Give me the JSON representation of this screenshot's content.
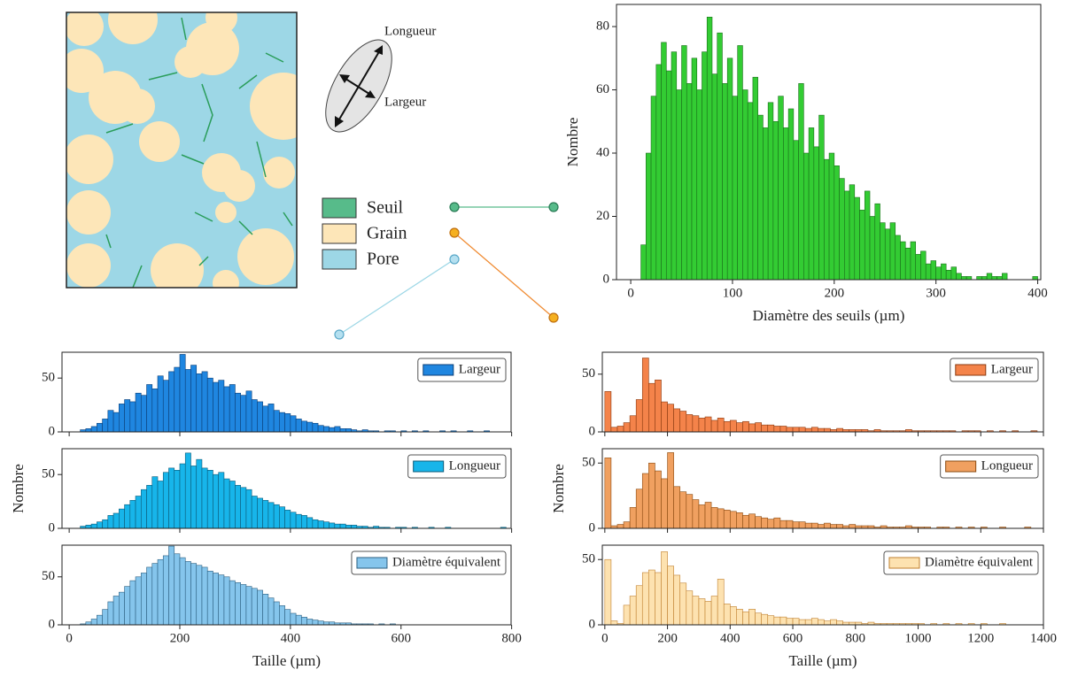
{
  "schematic": {
    "arrow_labels": [
      "Longueur",
      "Largeur"
    ],
    "legend": [
      "Seuil",
      "Grain",
      "Pore"
    ]
  },
  "chart_data": [
    {
      "type": "histogram",
      "xlabel": "Diamètre des seuils (µm)",
      "ylabel": "Nombre",
      "color": "#33cc33",
      "edgecolor": "#1a6e1a",
      "bins": [
        10,
        15,
        20,
        25,
        30,
        35,
        40,
        45,
        50,
        55,
        60,
        65,
        70,
        75,
        80,
        85,
        90,
        95,
        100,
        105,
        110,
        115,
        120,
        125,
        130,
        135,
        140,
        145,
        150,
        155,
        160,
        165,
        170,
        175,
        180,
        185,
        190,
        195,
        200,
        205,
        210,
        215,
        220,
        225,
        230,
        235,
        240,
        245,
        250,
        255,
        260,
        265,
        270,
        275,
        280,
        285,
        290,
        295,
        300,
        305,
        310,
        315,
        320,
        325,
        330,
        335,
        340,
        345,
        350,
        355,
        360,
        365,
        370,
        375,
        380,
        385,
        390,
        395,
        400
      ],
      "values": [
        11,
        40,
        58,
        68,
        75,
        66,
        72,
        60,
        74,
        62,
        70,
        60,
        72,
        83,
        65,
        78,
        62,
        70,
        58,
        74,
        60,
        56,
        64,
        52,
        48,
        56,
        50,
        58,
        48,
        54,
        44,
        62,
        40,
        48,
        42,
        52,
        38,
        40,
        36,
        32,
        28,
        30,
        26,
        22,
        28,
        20,
        24,
        18,
        16,
        18,
        14,
        12,
        10,
        12,
        8,
        9,
        5,
        6,
        4,
        5,
        3,
        4,
        2,
        1,
        1,
        0,
        1,
        1,
        2,
        1,
        1,
        2,
        0,
        0,
        0,
        0,
        0,
        1
      ],
      "xlim": [
        -14,
        403
      ],
      "ylim": [
        0,
        87
      ],
      "xticks": [
        0,
        100,
        200,
        300,
        400
      ],
      "yticks": [
        0,
        20,
        40,
        60,
        80
      ]
    },
    {
      "type": "histogram",
      "edgecolor": "#0b3f78",
      "xticklabels": false,
      "bins": [
        20,
        30,
        40,
        50,
        60,
        70,
        80,
        90,
        100,
        110,
        120,
        130,
        140,
        150,
        160,
        170,
        180,
        190,
        200,
        210,
        220,
        230,
        240,
        250,
        260,
        270,
        280,
        290,
        300,
        310,
        320,
        330,
        340,
        350,
        360,
        370,
        380,
        390,
        400,
        410,
        420,
        430,
        440,
        450,
        460,
        470,
        480,
        490,
        500,
        510,
        520,
        530,
        540,
        550,
        560,
        570,
        580,
        590,
        600,
        610,
        620,
        630,
        640,
        650,
        660,
        670,
        680,
        690,
        700,
        710,
        720,
        730,
        740,
        750,
        760,
        770,
        780,
        790,
        800
      ],
      "series": [
        {
          "name": "Largeur",
          "color": "#1f86e0",
          "values": [
            2,
            3,
            5,
            8,
            12,
            20,
            18,
            26,
            30,
            28,
            36,
            34,
            44,
            40,
            52,
            48,
            56,
            60,
            72,
            58,
            62,
            54,
            56,
            50,
            46,
            48,
            42,
            44,
            36,
            34,
            38,
            30,
            28,
            24,
            26,
            20,
            18,
            17,
            15,
            12,
            10,
            9,
            8,
            6,
            5,
            4,
            5,
            3,
            3,
            2,
            1,
            2,
            1,
            1,
            0,
            1,
            1,
            0,
            1,
            0,
            1,
            0,
            1,
            0,
            0,
            1,
            0,
            1,
            0,
            0,
            1,
            0,
            0,
            1,
            0,
            0,
            0,
            0
          ]
        }
      ],
      "xlim": [
        -13,
        799
      ],
      "ylim": [
        0,
        74
      ],
      "xticks": [
        0,
        200,
        400,
        600,
        800
      ],
      "yticks": [
        0,
        50
      ]
    },
    {
      "type": "histogram",
      "ylabel": "Nombre",
      "edgecolor": "#0b5a78",
      "xticklabels": false,
      "bins": [
        20,
        30,
        40,
        50,
        60,
        70,
        80,
        90,
        100,
        110,
        120,
        130,
        140,
        150,
        160,
        170,
        180,
        190,
        200,
        210,
        220,
        230,
        240,
        250,
        260,
        270,
        280,
        290,
        300,
        310,
        320,
        330,
        340,
        350,
        360,
        370,
        380,
        390,
        400,
        410,
        420,
        430,
        440,
        450,
        460,
        470,
        480,
        490,
        500,
        510,
        520,
        530,
        540,
        550,
        560,
        570,
        580,
        590,
        600,
        610,
        620,
        630,
        640,
        650,
        660,
        670,
        680,
        690,
        700,
        710,
        720,
        730,
        740,
        750,
        760,
        770,
        780,
        790,
        800
      ],
      "series": [
        {
          "name": "Longueur",
          "color": "#17b5ea",
          "values": [
            2,
            3,
            4,
            6,
            8,
            12,
            14,
            18,
            22,
            26,
            30,
            36,
            40,
            48,
            44,
            52,
            56,
            54,
            60,
            70,
            58,
            64,
            56,
            54,
            50,
            52,
            46,
            44,
            40,
            38,
            36,
            30,
            28,
            26,
            24,
            22,
            20,
            17,
            15,
            13,
            12,
            10,
            8,
            7,
            6,
            5,
            4,
            4,
            3,
            3,
            2,
            2,
            1,
            2,
            1,
            1,
            0,
            1,
            1,
            0,
            1,
            0,
            0,
            1,
            0,
            0,
            1,
            0,
            0,
            0,
            0,
            0,
            0,
            0,
            0,
            0,
            1,
            0
          ]
        }
      ],
      "xlim": [
        -13,
        799
      ],
      "ylim": [
        0,
        74
      ],
      "xticks": [
        0,
        200,
        400,
        600,
        800
      ],
      "yticks": [
        0,
        50
      ]
    },
    {
      "type": "histogram",
      "xlabel": "Taille (µm)",
      "edgecolor": "#2c5f80",
      "bins": [
        20,
        30,
        40,
        50,
        60,
        70,
        80,
        90,
        100,
        110,
        120,
        130,
        140,
        150,
        160,
        170,
        180,
        190,
        200,
        210,
        220,
        230,
        240,
        250,
        260,
        270,
        280,
        290,
        300,
        310,
        320,
        330,
        340,
        350,
        360,
        370,
        380,
        390,
        400,
        410,
        420,
        430,
        440,
        450,
        460,
        470,
        480,
        490,
        500,
        510,
        520,
        530,
        540,
        550,
        560,
        570,
        580,
        590,
        600,
        610,
        620,
        630,
        640,
        650,
        660,
        670,
        680,
        690,
        700,
        710,
        720,
        730,
        740,
        750,
        760,
        770,
        780,
        790,
        800
      ],
      "series": [
        {
          "name": "Diamètre équivalent",
          "color": "#85c5ec",
          "values": [
            1,
            3,
            6,
            10,
            16,
            24,
            30,
            34,
            40,
            46,
            50,
            54,
            60,
            64,
            68,
            72,
            82,
            74,
            70,
            66,
            64,
            62,
            60,
            56,
            54,
            52,
            50,
            46,
            44,
            42,
            40,
            38,
            36,
            32,
            28,
            24,
            20,
            16,
            12,
            10,
            8,
            6,
            5,
            4,
            3,
            3,
            2,
            2,
            2,
            1,
            1,
            1,
            1,
            0,
            1,
            0,
            1,
            0,
            0,
            0,
            0,
            0,
            0,
            0,
            0,
            0,
            0,
            0,
            0,
            0,
            0,
            0,
            0,
            0,
            0,
            0,
            0,
            0
          ]
        }
      ],
      "xlim": [
        -13,
        799
      ],
      "ylim": [
        0,
        83
      ],
      "xticks": [
        0,
        200,
        400,
        600,
        800
      ],
      "yticks": [
        0,
        50
      ]
    },
    {
      "type": "histogram",
      "edgecolor": "#8a3a10",
      "xticklabels": false,
      "bins": [
        0,
        20,
        40,
        60,
        80,
        100,
        120,
        140,
        160,
        180,
        200,
        220,
        240,
        260,
        280,
        300,
        320,
        340,
        360,
        380,
        400,
        420,
        440,
        460,
        480,
        500,
        520,
        540,
        560,
        580,
        600,
        620,
        640,
        660,
        680,
        700,
        720,
        740,
        760,
        780,
        800,
        820,
        840,
        860,
        880,
        900,
        920,
        940,
        960,
        980,
        1000,
        1020,
        1040,
        1060,
        1080,
        1100,
        1120,
        1140,
        1160,
        1180,
        1200,
        1220,
        1240,
        1260,
        1280,
        1300,
        1320,
        1340,
        1360,
        1380,
        1400
      ],
      "series": [
        {
          "name": "Largeur",
          "color": "#f4834a",
          "values": [
            35,
            4,
            5,
            8,
            14,
            28,
            64,
            42,
            45,
            26,
            24,
            20,
            18,
            15,
            14,
            12,
            13,
            10,
            12,
            9,
            10,
            8,
            9,
            7,
            8,
            6,
            6,
            5,
            5,
            4,
            4,
            4,
            3,
            4,
            3,
            3,
            2,
            3,
            2,
            2,
            2,
            2,
            1,
            2,
            1,
            1,
            1,
            1,
            2,
            1,
            1,
            1,
            1,
            1,
            1,
            1,
            0,
            1,
            1,
            1,
            0,
            1,
            0,
            1,
            0,
            1,
            0,
            0,
            1,
            0
          ]
        }
      ],
      "xlim": [
        -8,
        1400
      ],
      "ylim": [
        0,
        69
      ],
      "xticks": [
        0,
        200,
        400,
        600,
        800,
        1000,
        1200,
        1400
      ],
      "yticks": [
        0,
        50
      ]
    },
    {
      "type": "histogram",
      "ylabel": "Nombre",
      "edgecolor": "#8a4a10",
      "xticklabels": false,
      "bins": [
        0,
        20,
        40,
        60,
        80,
        100,
        120,
        140,
        160,
        180,
        200,
        220,
        240,
        260,
        280,
        300,
        320,
        340,
        360,
        380,
        400,
        420,
        440,
        460,
        480,
        500,
        520,
        540,
        560,
        580,
        600,
        620,
        640,
        660,
        680,
        700,
        720,
        740,
        760,
        780,
        800,
        820,
        840,
        860,
        880,
        900,
        920,
        940,
        960,
        980,
        1000,
        1020,
        1040,
        1060,
        1080,
        1100,
        1120,
        1140,
        1160,
        1180,
        1200,
        1220,
        1240,
        1260,
        1280,
        1300,
        1320,
        1340,
        1360,
        1380,
        1400
      ],
      "series": [
        {
          "name": "Longueur",
          "color": "#f0a060",
          "values": [
            54,
            2,
            3,
            5,
            16,
            30,
            42,
            50,
            44,
            38,
            58,
            32,
            28,
            26,
            22,
            18,
            20,
            16,
            15,
            14,
            13,
            12,
            10,
            11,
            9,
            8,
            7,
            8,
            6,
            6,
            5,
            5,
            4,
            4,
            3,
            4,
            3,
            3,
            2,
            3,
            2,
            2,
            2,
            1,
            2,
            1,
            1,
            1,
            2,
            1,
            1,
            1,
            0,
            1,
            1,
            0,
            1,
            0,
            1,
            0,
            1,
            0,
            0,
            1,
            0,
            0,
            0,
            1,
            0,
            0
          ]
        }
      ],
      "xlim": [
        -8,
        1400
      ],
      "ylim": [
        0,
        61
      ],
      "xticks": [
        0,
        200,
        400,
        600,
        800,
        1000,
        1200,
        1400
      ],
      "yticks": [
        0,
        50
      ]
    },
    {
      "type": "histogram",
      "xlabel": "Taille (µm)",
      "edgecolor": "#c08030",
      "bins": [
        0,
        20,
        40,
        60,
        80,
        100,
        120,
        140,
        160,
        180,
        200,
        220,
        240,
        260,
        280,
        300,
        320,
        340,
        360,
        380,
        400,
        420,
        440,
        460,
        480,
        500,
        520,
        540,
        560,
        580,
        600,
        620,
        640,
        660,
        680,
        700,
        720,
        740,
        760,
        780,
        800,
        820,
        840,
        860,
        880,
        900,
        920,
        940,
        960,
        980,
        1000,
        1020,
        1040,
        1060,
        1080,
        1100,
        1120,
        1140,
        1160,
        1180,
        1200,
        1220,
        1240,
        1260,
        1280,
        1300,
        1320,
        1340,
        1360,
        1380,
        1400
      ],
      "series": [
        {
          "name": "Diamètre équivalent",
          "color": "#fde2b0",
          "values": [
            50,
            3,
            1,
            15,
            22,
            30,
            40,
            42,
            40,
            56,
            45,
            38,
            32,
            26,
            22,
            20,
            18,
            22,
            35,
            16,
            14,
            12,
            10,
            12,
            9,
            8,
            7,
            6,
            6,
            5,
            5,
            4,
            4,
            5,
            4,
            3,
            4,
            3,
            2,
            2,
            2,
            1,
            2,
            1,
            1,
            1,
            1,
            1,
            1,
            1,
            1,
            0,
            1,
            0,
            1,
            0,
            1,
            0,
            1,
            0,
            1,
            0,
            0,
            1,
            0,
            0,
            0,
            0,
            0,
            0
          ]
        }
      ],
      "xlim": [
        -8,
        1400
      ],
      "ylim": [
        0,
        61
      ],
      "xticks": [
        0,
        200,
        400,
        600,
        800,
        1000,
        1200,
        1400
      ],
      "yticks": [
        0,
        50
      ]
    }
  ]
}
